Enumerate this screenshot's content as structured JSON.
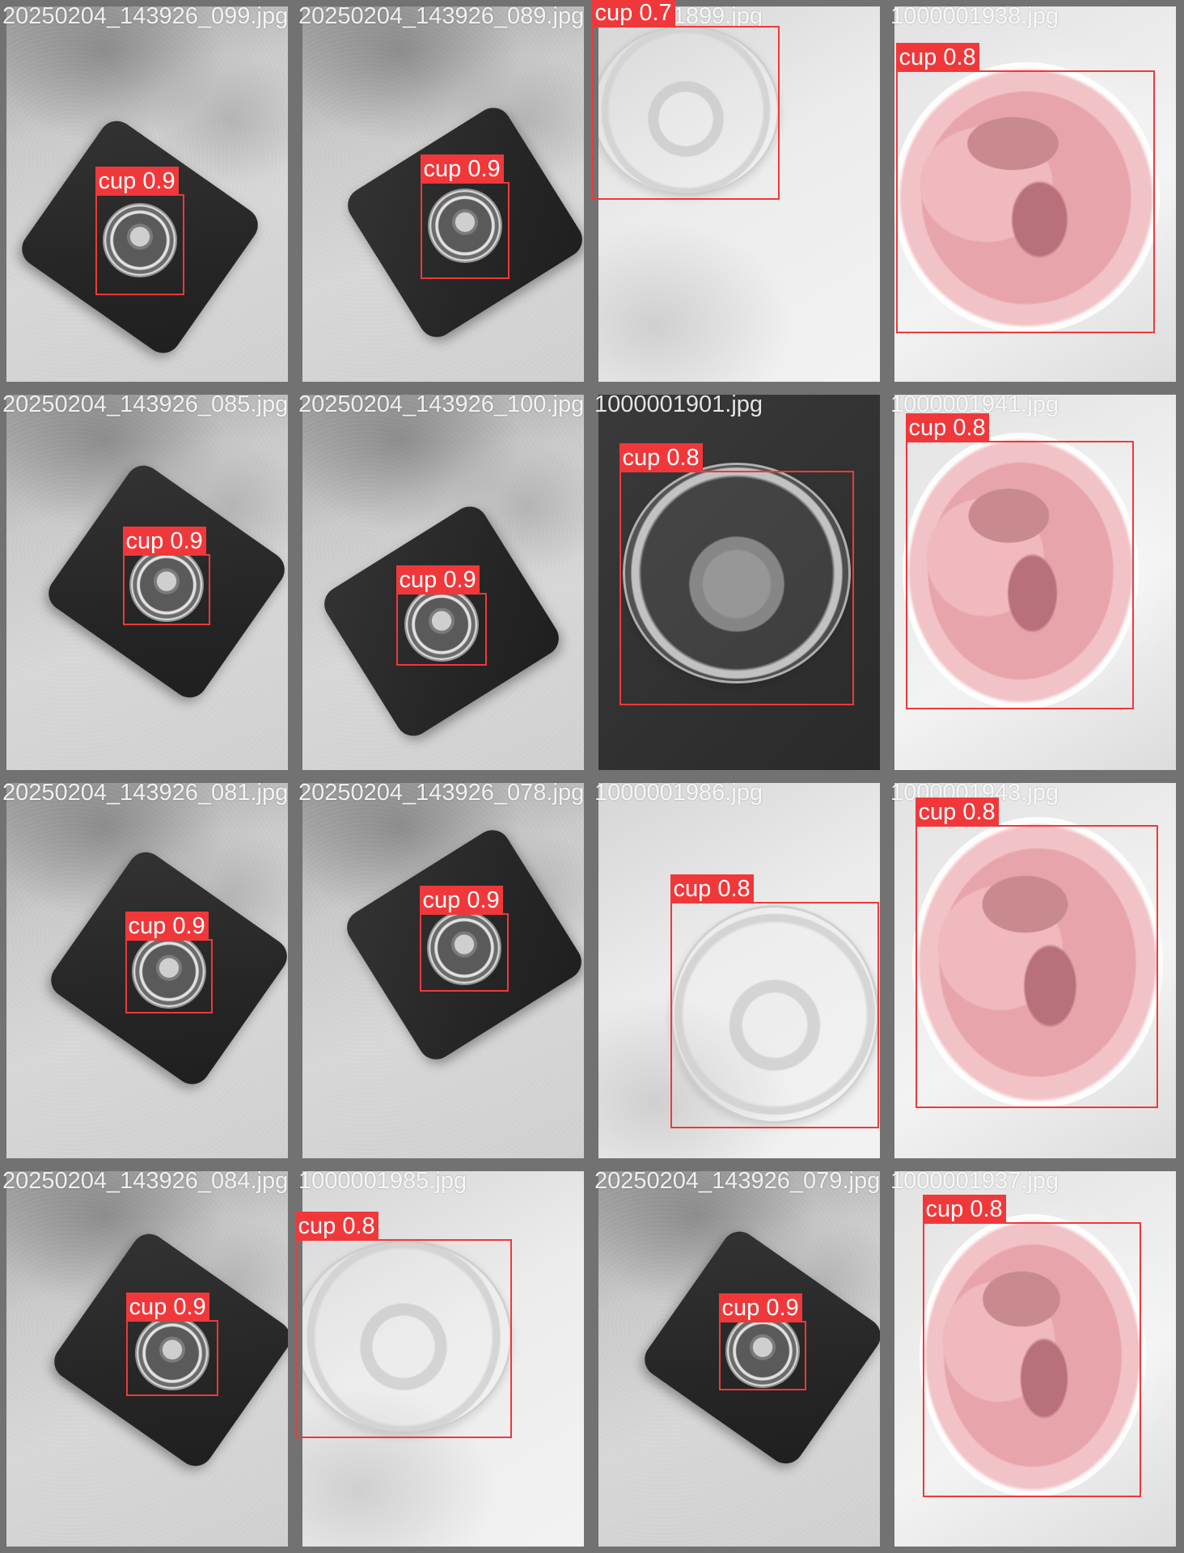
{
  "grid": {
    "background": "#727272",
    "box_color": "#f0383b",
    "tiles": [
      {
        "filename": "20250204_143926_099.jpg",
        "scene": "carpet-mat",
        "detections": [
          {
            "label": "cup 0.9"
          }
        ]
      },
      {
        "filename": "20250204_143926_089.jpg",
        "scene": "carpet-mat",
        "detections": [
          {
            "label": "cup 0.9"
          }
        ]
      },
      {
        "filename": "1000001899.jpg",
        "scene": "white-cup",
        "detections": [
          {
            "label": "cup 0.7"
          }
        ]
      },
      {
        "filename": "1000001938.jpg",
        "scene": "pink-icecream",
        "detections": [
          {
            "label": "cup 0.8"
          }
        ]
      },
      {
        "filename": "20250204_143926_085.jpg",
        "scene": "carpet-mat",
        "detections": [
          {
            "label": "cup 0.9"
          }
        ]
      },
      {
        "filename": "20250204_143926_100.jpg",
        "scene": "carpet-mat",
        "detections": [
          {
            "label": "cup 0.9"
          }
        ]
      },
      {
        "filename": "1000001901.jpg",
        "scene": "dark-cup",
        "detections": [
          {
            "label": "cup 0.8"
          }
        ]
      },
      {
        "filename": "1000001941.jpg",
        "scene": "pink-icecream",
        "detections": [
          {
            "label": "cup 0.8"
          }
        ]
      },
      {
        "filename": "20250204_143926_081.jpg",
        "scene": "carpet-mat",
        "detections": [
          {
            "label": "cup 0.9"
          }
        ]
      },
      {
        "filename": "20250204_143926_078.jpg",
        "scene": "carpet-mat",
        "detections": [
          {
            "label": "cup 0.9"
          }
        ]
      },
      {
        "filename": "1000001986.jpg",
        "scene": "white-cup",
        "detections": [
          {
            "label": "cup 0.8"
          }
        ]
      },
      {
        "filename": "1000001943.jpg",
        "scene": "pink-icecream",
        "detections": [
          {
            "label": "cup 0.8"
          }
        ]
      },
      {
        "filename": "20250204_143926_084.jpg",
        "scene": "carpet-mat",
        "detections": [
          {
            "label": "cup 0.9"
          }
        ]
      },
      {
        "filename": "1000001985.jpg",
        "scene": "white-cup",
        "detections": [
          {
            "label": "cup 0.8"
          }
        ]
      },
      {
        "filename": "20250204_143926_079.jpg",
        "scene": "carpet-mat",
        "detections": [
          {
            "label": "cup 0.9"
          }
        ]
      },
      {
        "filename": "1000001937.jpg",
        "scene": "pink-icecream",
        "detections": [
          {
            "label": "cup 0.8"
          }
        ]
      }
    ]
  }
}
